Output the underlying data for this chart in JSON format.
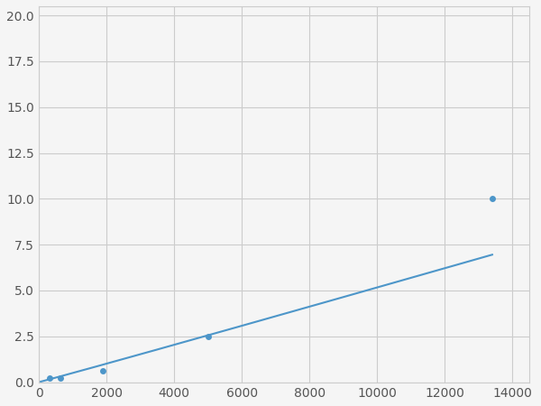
{
  "x_data": [
    156,
    313,
    625,
    1875,
    5000,
    13400
  ],
  "y_data": [
    0.1,
    0.2,
    0.2,
    0.6,
    2.5,
    10.0
  ],
  "marker_x": [
    313,
    625,
    1875,
    5000,
    13400
  ],
  "marker_y": [
    0.2,
    0.2,
    0.6,
    2.5,
    10.0
  ],
  "line_color": "#4d96c9",
  "marker_color": "#4d96c9",
  "marker_size": 5,
  "line_width": 1.5,
  "xlim": [
    0,
    14500
  ],
  "ylim": [
    0,
    20.5
  ],
  "xticks": [
    0,
    2000,
    4000,
    6000,
    8000,
    10000,
    12000,
    14000
  ],
  "yticks": [
    0.0,
    2.5,
    5.0,
    7.5,
    10.0,
    12.5,
    15.0,
    17.5,
    20.0
  ],
  "grid_color": "#cccccc",
  "background_color": "#f5f5f5",
  "tick_fontsize": 10,
  "tick_color": "#555555"
}
